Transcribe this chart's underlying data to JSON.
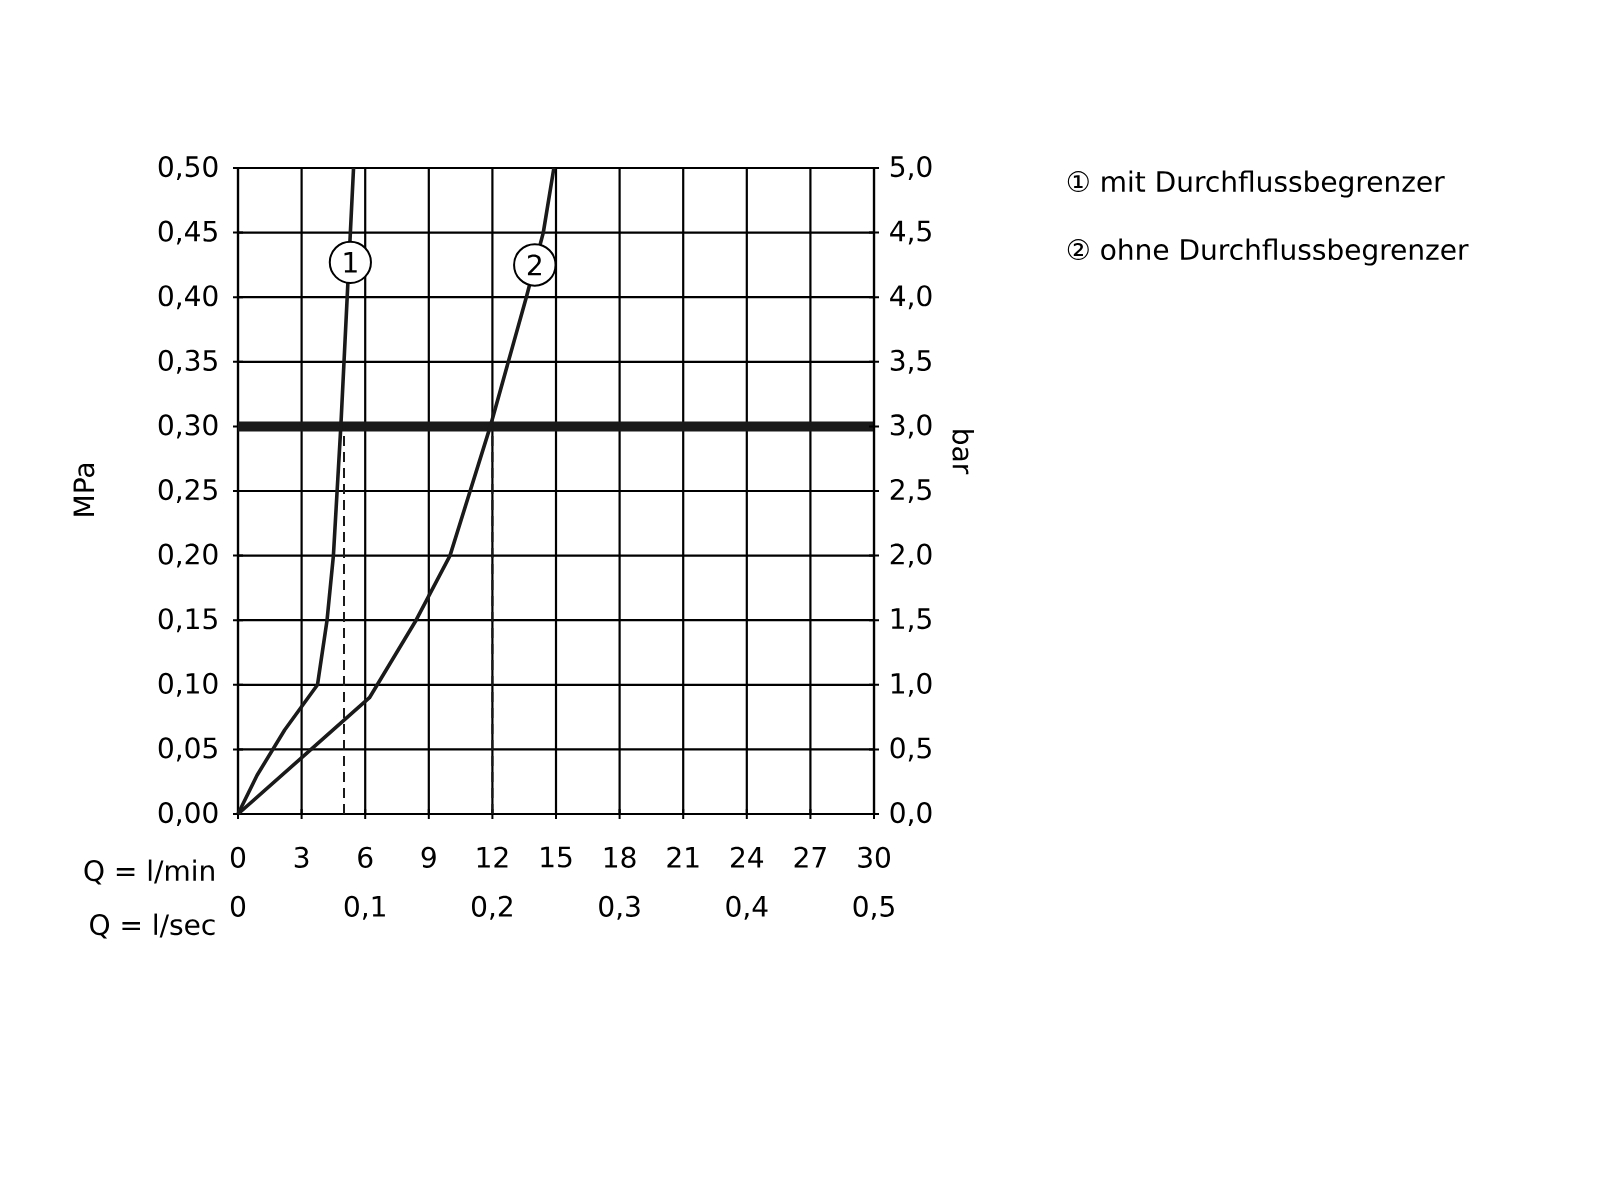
{
  "chart_data": {
    "type": "line",
    "xlabel": "Q = l/min",
    "x2label": "Q = l/sec",
    "ylabel": "MPa",
    "y2label": "bar",
    "xlim": [
      0,
      30
    ],
    "xticks": [
      0,
      3,
      6,
      9,
      12,
      15,
      18,
      21,
      24,
      27,
      30
    ],
    "x2lim": [
      0,
      0.5
    ],
    "x2ticks": [
      {
        "value": 0,
        "label": "0"
      },
      {
        "value": 0.1,
        "label": "0,1"
      },
      {
        "value": 0.2,
        "label": "0,2"
      },
      {
        "value": 0.3,
        "label": "0,3"
      },
      {
        "value": 0.4,
        "label": "0,4"
      },
      {
        "value": 0.5,
        "label": "0,5"
      }
    ],
    "ylim": [
      0,
      0.5
    ],
    "yticks": [
      {
        "value": 0,
        "label": "0,00"
      },
      {
        "value": 0.05,
        "label": "0,05"
      },
      {
        "value": 0.1,
        "label": "0,10"
      },
      {
        "value": 0.15,
        "label": "0,15"
      },
      {
        "value": 0.2,
        "label": "0,20"
      },
      {
        "value": 0.25,
        "label": "0,25"
      },
      {
        "value": 0.3,
        "label": "0,30"
      },
      {
        "value": 0.35,
        "label": "0,35"
      },
      {
        "value": 0.4,
        "label": "0,40"
      },
      {
        "value": 0.45,
        "label": "0,45"
      },
      {
        "value": 0.5,
        "label": "0,50"
      }
    ],
    "y2lim": [
      0,
      5
    ],
    "y2ticks": [
      {
        "value": 0,
        "label": "0,0"
      },
      {
        "value": 0.5,
        "label": "0,5"
      },
      {
        "value": 1,
        "label": "1,0"
      },
      {
        "value": 1.5,
        "label": "1,5"
      },
      {
        "value": 2,
        "label": "2,0"
      },
      {
        "value": 2.5,
        "label": "2,5"
      },
      {
        "value": 3,
        "label": "3,0"
      },
      {
        "value": 3.5,
        "label": "3,5"
      },
      {
        "value": 4,
        "label": "4,0"
      },
      {
        "value": 4.5,
        "label": "4,5"
      },
      {
        "value": 5,
        "label": "5,0"
      }
    ],
    "grid": true,
    "series": [
      {
        "color": "#1a1a1a",
        "x": [
          0,
          0.9,
          2.2,
          3.75,
          4.2,
          4.5,
          4.85,
          5.15,
          5.3,
          5.45
        ],
        "values": [
          0,
          0.03,
          0.065,
          0.1,
          0.15,
          0.2,
          0.3,
          0.4,
          0.45,
          0.5
        ]
      },
      {
        "color": "#1a1a1a",
        "x": [
          0,
          3.1,
          6.2,
          8.4,
          10,
          11.9,
          13.6,
          14.4,
          14.9
        ],
        "values": [
          0,
          0.045,
          0.09,
          0.15,
          0.2,
          0.3,
          0.4,
          0.45,
          0.5
        ]
      }
    ],
    "ref_lines": [
      {
        "axis": "y",
        "value": 0.3,
        "color": "#1a1a1a",
        "line_style": "solid"
      },
      {
        "axis": "x",
        "value": 5,
        "color": "#1a1a1a",
        "line_style": "dashed"
      },
      {
        "axis": "x",
        "value": 12,
        "color": "#1a1a1a",
        "line_style": "dashed"
      }
    ],
    "annotations": [
      {
        "text": "1",
        "x": 5.3,
        "y": 0.427
      },
      {
        "text": "2",
        "x": 14,
        "y": 0.425
      },
      "① mit Durchflussbegrenzer",
      "② ohne Durchflussbegrenzer"
    ]
  }
}
